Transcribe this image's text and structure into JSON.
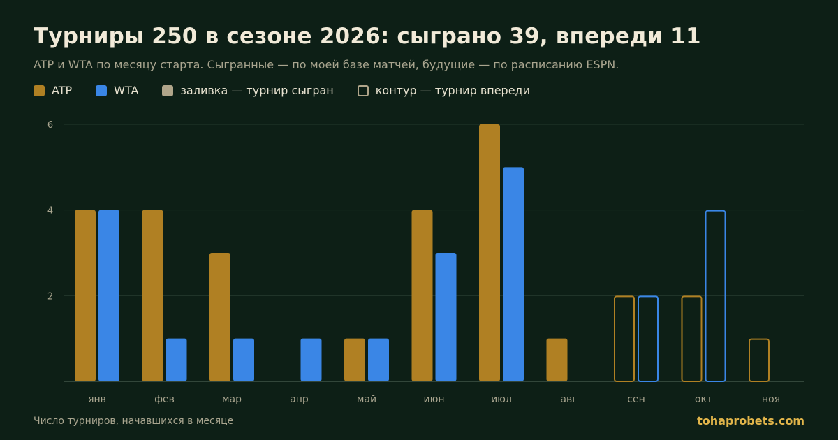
{
  "title": "Турниры 250 в сезоне 2026: сыграно 39, впереди 11",
  "subtitle": "ATP и WTA по месяцу старта. Сыгранные — по моей базе матчей, будущие — по расписанию ESPN.",
  "legend": {
    "atp": "ATP",
    "wta": "WTA",
    "played": "заливка — турнир сыгран",
    "upcoming": "контур — турнир впереди"
  },
  "footer": {
    "note": "Число турниров, начавшихся в месяце",
    "brand": "tohaprobets.com"
  },
  "colors": {
    "atp": "#b08023",
    "wta": "#3a86e6",
    "played_swatch": "#b0a58a",
    "grid": "#23382c",
    "axis": "#4a5d50"
  },
  "chart_data": {
    "type": "bar",
    "categories": [
      "янв",
      "фев",
      "мар",
      "апр",
      "май",
      "июн",
      "июл",
      "авг",
      "сен",
      "окт",
      "ноя"
    ],
    "series": [
      {
        "name": "ATP",
        "values": [
          4,
          4,
          3,
          0,
          1,
          4,
          6,
          1,
          2,
          2,
          1
        ]
      },
      {
        "name": "WTA",
        "values": [
          4,
          1,
          1,
          1,
          1,
          3,
          5,
          0,
          2,
          4,
          0
        ]
      }
    ],
    "status": [
      "played",
      "played",
      "played",
      "played",
      "played",
      "played",
      "played",
      "played",
      "upcoming",
      "upcoming",
      "upcoming"
    ],
    "ylim": [
      0,
      6
    ],
    "yticks": [
      2,
      4,
      6
    ],
    "grid": true,
    "legend_position": "top-left"
  }
}
